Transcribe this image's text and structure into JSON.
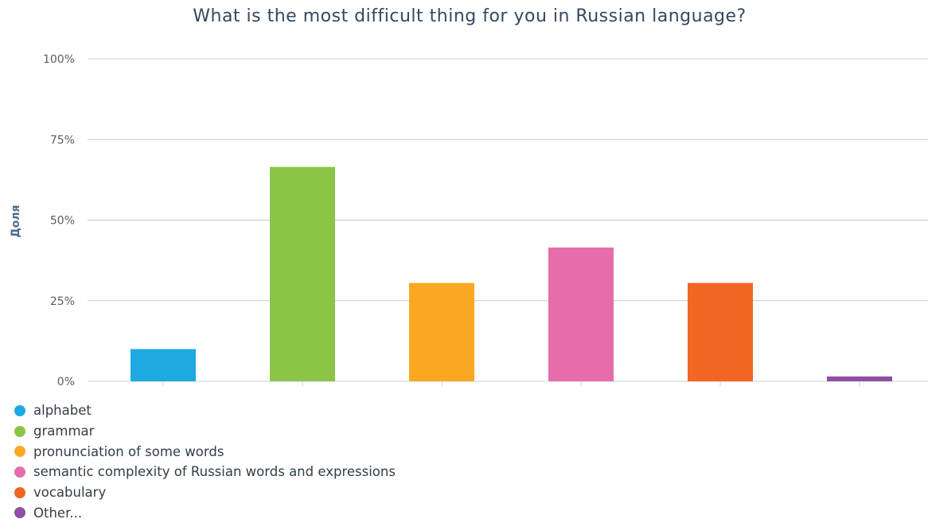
{
  "chart_data": {
    "type": "bar",
    "title": "What is the most difficult thing for you in Russian language?",
    "ylabel": "Доля",
    "xlabel": "",
    "ylim": [
      0,
      100
    ],
    "yticks": [
      "0%",
      "25%",
      "50%",
      "75%",
      "100%"
    ],
    "ytick_values": [
      0,
      25,
      50,
      75,
      100
    ],
    "grid": true,
    "legend_position": "bottom-left",
    "categories": [
      "alphabet",
      "grammar",
      "pronunciation of some words",
      "semantic complexity of Russian words and expressions",
      "vocabulary",
      "Other..."
    ],
    "values": [
      10,
      66.5,
      30.5,
      41.5,
      30.5,
      1.5
    ],
    "colors": [
      "#1fa9e1",
      "#8bc548",
      "#faa722",
      "#e76daa",
      "#f16623",
      "#8e4fa4"
    ]
  }
}
